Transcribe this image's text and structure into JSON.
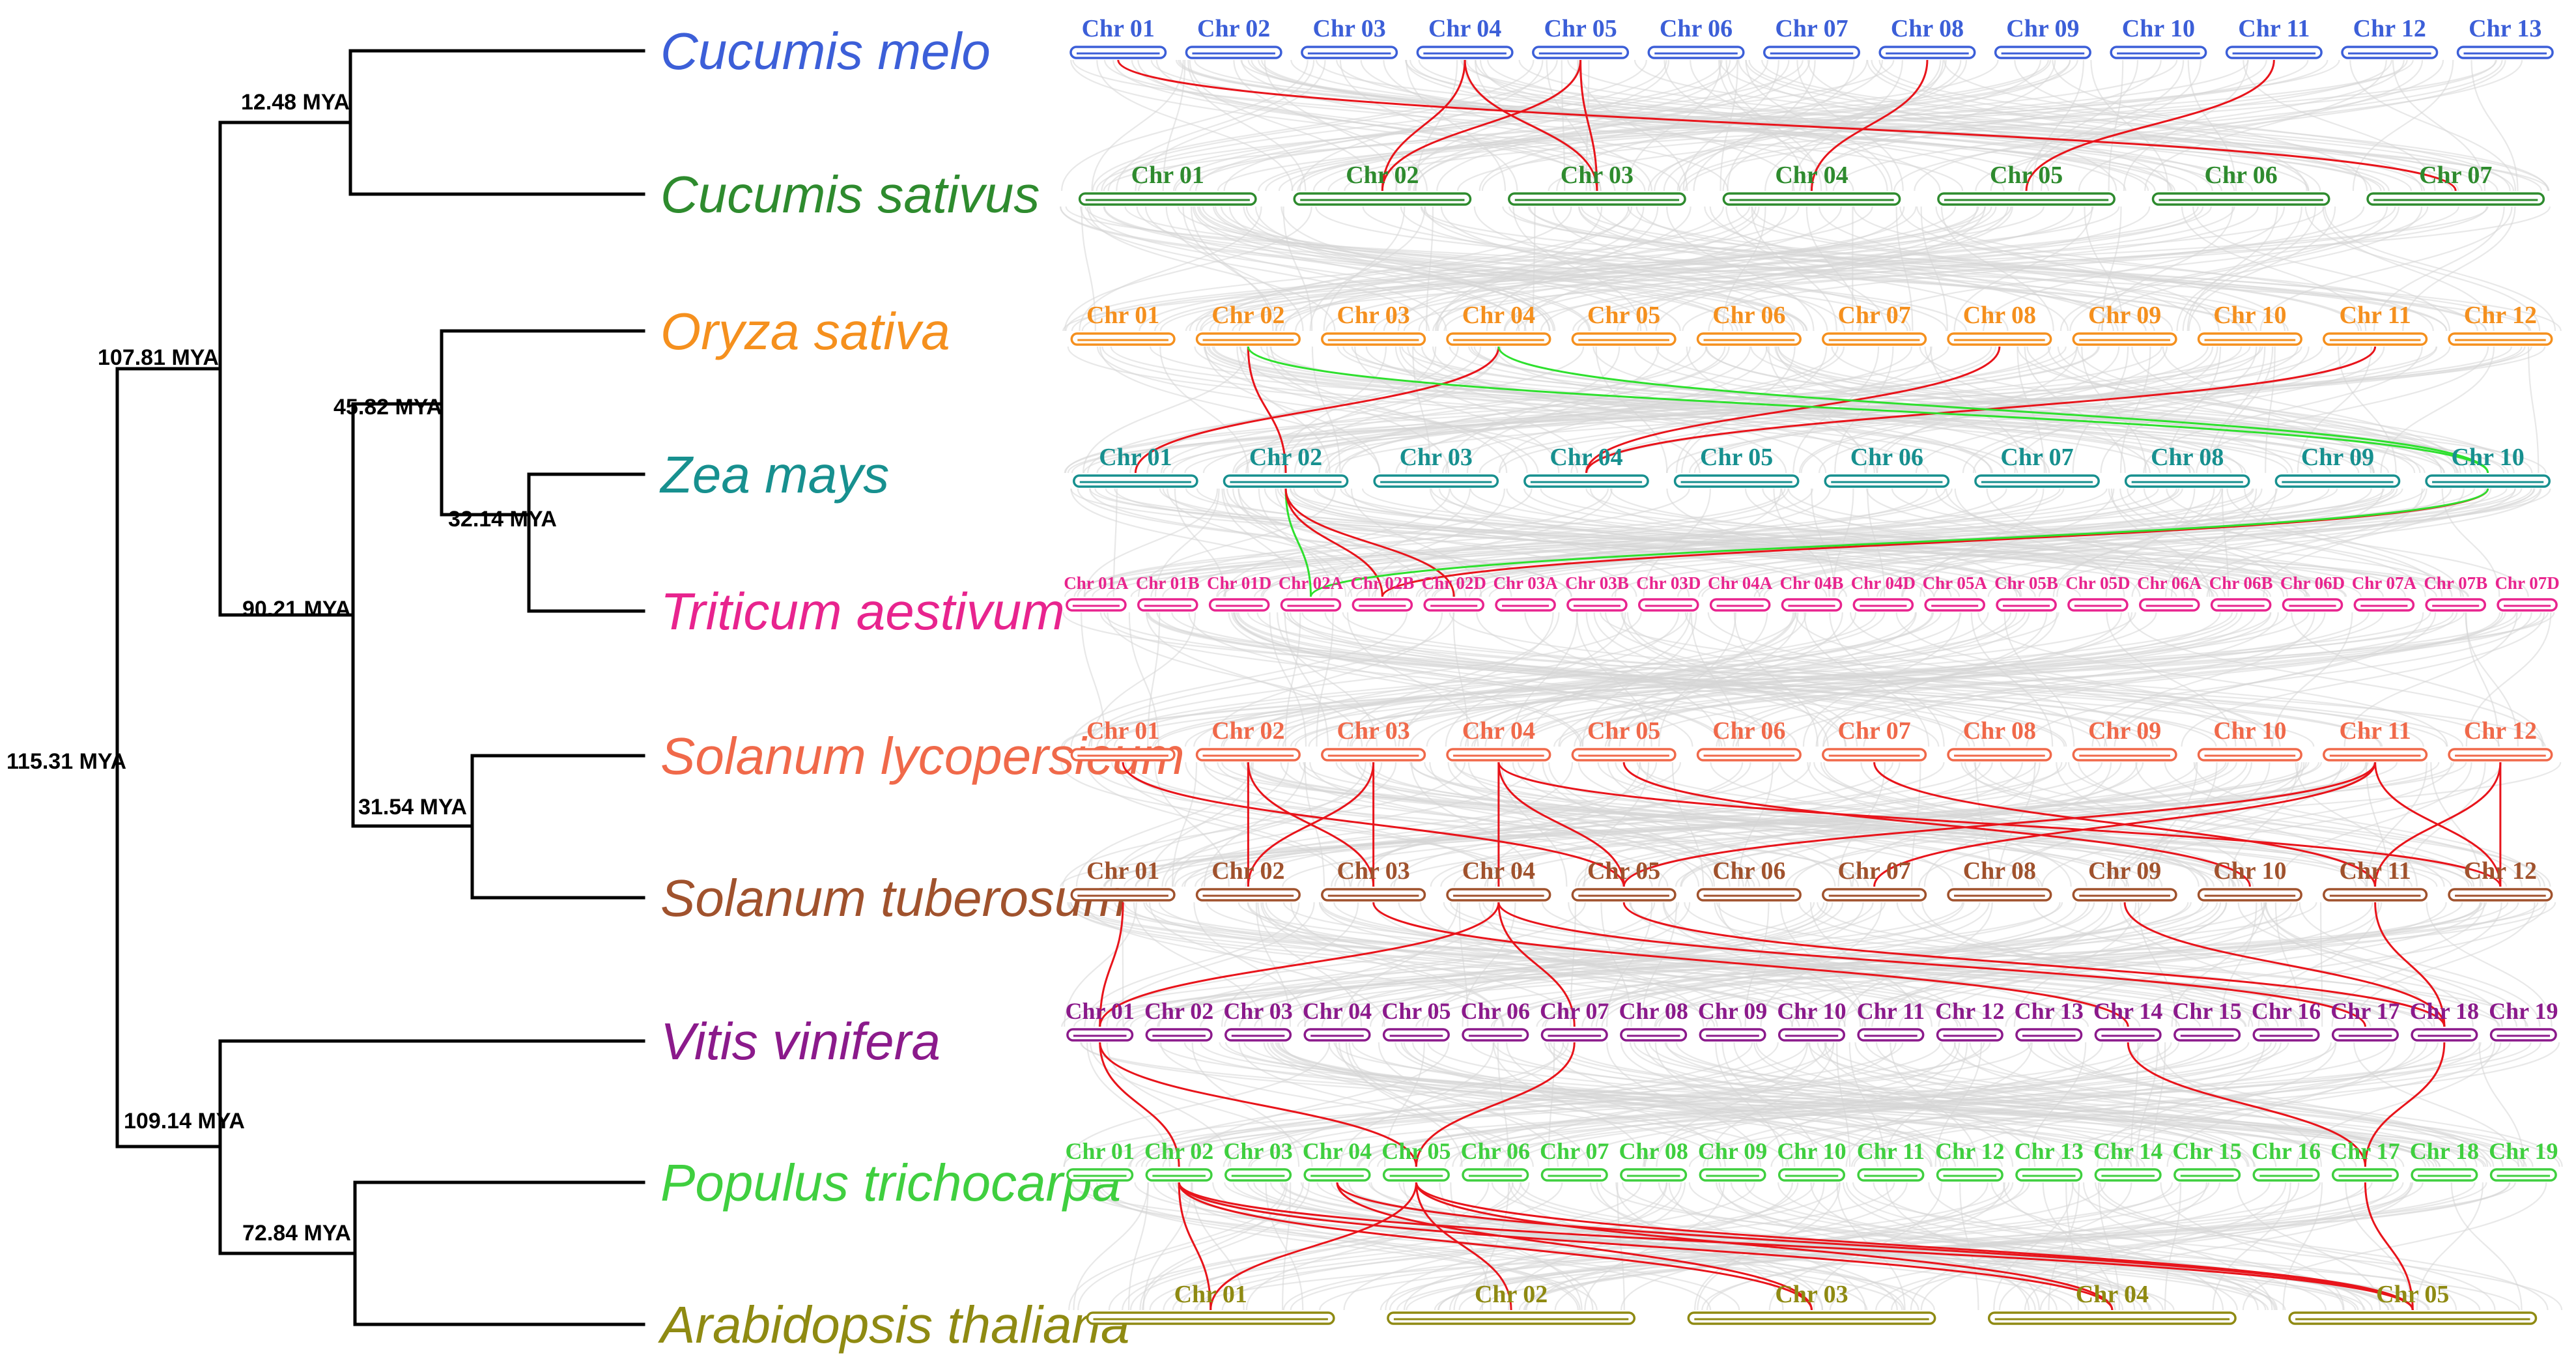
{
  "colors": {
    "background_links": "#d6d6d6",
    "red_links": "#e8141b",
    "green_links": "#2ee02e",
    "tree": "#000000"
  },
  "nodes": [
    {
      "id": "n1",
      "label": "12.48 MYA"
    },
    {
      "id": "n2",
      "label": "107.81 MYA"
    },
    {
      "id": "n3",
      "label": "45.82 MYA"
    },
    {
      "id": "n4",
      "label": "32.14 MYA"
    },
    {
      "id": "n5",
      "label": "90.21 MYA"
    },
    {
      "id": "n6",
      "label": "31.54 MYA"
    },
    {
      "id": "n7",
      "label": "115.31 MYA"
    },
    {
      "id": "n8",
      "label": "109.14 MYA"
    },
    {
      "id": "n9",
      "label": "72.84 MYA"
    }
  ],
  "species": [
    {
      "name": "Cucumis melo",
      "color": "#3c5fd8",
      "chromosomes": [
        "Chr 01",
        "Chr 02",
        "Chr 03",
        "Chr 04",
        "Chr 05",
        "Chr 06",
        "Chr 07",
        "Chr 08",
        "Chr 09",
        "Chr 10",
        "Chr 11",
        "Chr 12",
        "Chr 13"
      ]
    },
    {
      "name": "Cucumis sativus",
      "color": "#2e8b2e",
      "chromosomes": [
        "Chr 01",
        "Chr 02",
        "Chr 03",
        "Chr 04",
        "Chr 05",
        "Chr 06",
        "Chr 07"
      ]
    },
    {
      "name": "Oryza sativa",
      "color": "#f5901e",
      "chromosomes": [
        "Chr 01",
        "Chr 02",
        "Chr 03",
        "Chr 04",
        "Chr 05",
        "Chr 06",
        "Chr 07",
        "Chr 08",
        "Chr 09",
        "Chr 10",
        "Chr 11",
        "Chr 12"
      ]
    },
    {
      "name": "Zea mays",
      "color": "#17908f",
      "chromosomes": [
        "Chr 01",
        "Chr 02",
        "Chr 03",
        "Chr 04",
        "Chr 05",
        "Chr 06",
        "Chr 07",
        "Chr 08",
        "Chr 09",
        "Chr 10"
      ]
    },
    {
      "name": "Triticum aestivum",
      "color": "#e8248e",
      "chromosomes": [
        "Chr 01A",
        "Chr 01B",
        "Chr 01D",
        "Chr 02A",
        "Chr 02B",
        "Chr 02D",
        "Chr 03A",
        "Chr 03B",
        "Chr 03D",
        "Chr 04A",
        "Chr 04B",
        "Chr 04D",
        "Chr 05A",
        "Chr 05B",
        "Chr 05D",
        "Chr 06A",
        "Chr 06B",
        "Chr 06D",
        "Chr 07A",
        "Chr 07B",
        "Chr 07D"
      ]
    },
    {
      "name": "Solanum lycopersicum",
      "color": "#f0694a",
      "chromosomes": [
        "Chr 01",
        "Chr 02",
        "Chr 03",
        "Chr 04",
        "Chr 05",
        "Chr 06",
        "Chr 07",
        "Chr 08",
        "Chr 09",
        "Chr 10",
        "Chr 11",
        "Chr 12"
      ]
    },
    {
      "name": "Solanum tuberosum",
      "color": "#a0522d",
      "chromosomes": [
        "Chr 01",
        "Chr 02",
        "Chr 03",
        "Chr 04",
        "Chr 05",
        "Chr 06",
        "Chr 07",
        "Chr 08",
        "Chr 09",
        "Chr 10",
        "Chr 11",
        "Chr 12"
      ]
    },
    {
      "name": "Vitis vinifera",
      "color": "#8b1a8b",
      "chromosomes": [
        "Chr 01",
        "Chr 02",
        "Chr 03",
        "Chr 04",
        "Chr 05",
        "Chr 06",
        "Chr 07",
        "Chr 08",
        "Chr 09",
        "Chr 10",
        "Chr 11",
        "Chr 12",
        "Chr 13",
        "Chr 14",
        "Chr 15",
        "Chr 16",
        "Chr 17",
        "Chr 18",
        "Chr 19"
      ]
    },
    {
      "name": "Populus trichocarpa",
      "color": "#3fcf3f",
      "chromosomes": [
        "Chr 01",
        "Chr 02",
        "Chr 03",
        "Chr 04",
        "Chr 05",
        "Chr 06",
        "Chr 07",
        "Chr 08",
        "Chr 09",
        "Chr 10",
        "Chr 11",
        "Chr 12",
        "Chr 13",
        "Chr 14",
        "Chr 15",
        "Chr 16",
        "Chr 17",
        "Chr 18",
        "Chr 19"
      ]
    },
    {
      "name": "Arabidopsis thaliana",
      "color": "#8f8a12",
      "chromosomes": [
        "Chr 01",
        "Chr 02",
        "Chr 03",
        "Chr 04",
        "Chr 05"
      ]
    }
  ]
}
